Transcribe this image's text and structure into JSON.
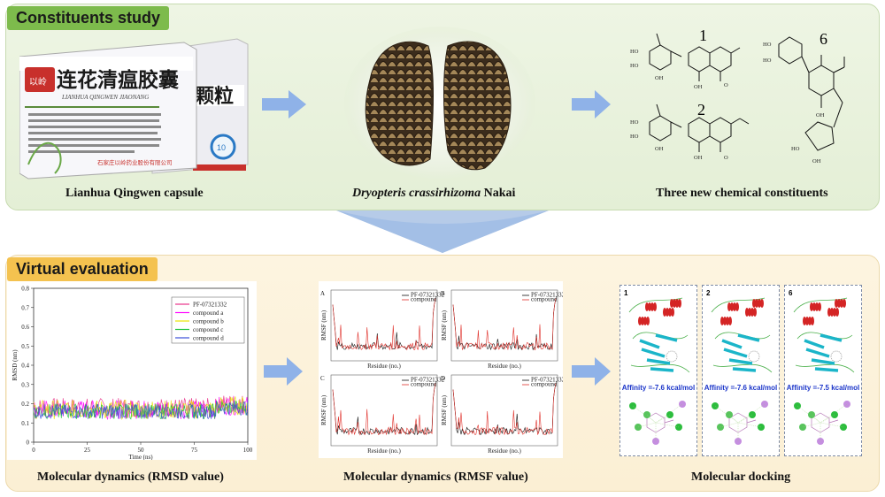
{
  "sections": {
    "constituents": "Constituents study",
    "virtual": "Virtual evaluation"
  },
  "captions": {
    "capsule": "Lianhua Qingwen capsule",
    "herb_species": "Dryopteris crassirhizoma",
    "herb_author": " Nakai",
    "constituents": "Three new chemical constituents",
    "rmsd": "Molecular dynamics (RMSD value)",
    "rmsf": "Molecular dynamics (RMSF value)",
    "docking": "Molecular docking"
  },
  "capsule_box": {
    "title_cn": "连花清瘟胶囊",
    "pinyin": "LIANHUA QINGWEN JIAONANG",
    "second_box_cn": "颗粒",
    "manufacturer_cn": "石家庄以岭药业股份有限公司",
    "logo_text": "以岭",
    "badge": "10"
  },
  "compounds": {
    "c1": "1",
    "c2": "2",
    "c6": "6",
    "atoms": {
      "HO": "HO",
      "OH": "OH",
      "O": "O",
      "OH2": "OH"
    }
  },
  "chart_data": [
    {
      "type": "line",
      "title": "",
      "xlabel": "Time (ns)",
      "ylabel": "RMSD (nm)",
      "xlim": [
        0,
        100
      ],
      "ylim": [
        0,
        0.8
      ],
      "xticks": [
        "0",
        "25",
        "50",
        "75",
        "100"
      ],
      "yticks": [
        "0",
        "0.1",
        "0.2",
        "0.3",
        "0.4",
        "0.5",
        "0.6",
        "0.7",
        "0.8"
      ],
      "legend_position": "top-right",
      "series": [
        {
          "name": "PF-07321332",
          "color": "#e8338a",
          "mean": 0.18,
          "band": 0.05
        },
        {
          "name": "compound a",
          "color": "#ff00ff",
          "mean": 0.17,
          "band": 0.05
        },
        {
          "name": "compound b",
          "color": "#e8e400",
          "mean": 0.17,
          "band": 0.05
        },
        {
          "name": "compound c",
          "color": "#19c23a",
          "mean": 0.16,
          "band": 0.04
        },
        {
          "name": "compound d",
          "color": "#3a4fd8",
          "mean": 0.16,
          "band": 0.04
        }
      ]
    },
    {
      "type": "line",
      "title": "",
      "panels": [
        "A",
        "B",
        "C",
        "D"
      ],
      "xlabel": "Residue (no.)",
      "ylabel": "RMSF (nm)",
      "series": [
        {
          "name": "PF-07321332",
          "color": "#111111"
        },
        {
          "name": "compound",
          "color": "#e0302a"
        }
      ]
    }
  ],
  "docking": {
    "panels": [
      {
        "num": "1",
        "affinity": "Affinity =-7.6 kcal/mol"
      },
      {
        "num": "2",
        "affinity": "Affinity =-7.6 kcal/mol"
      },
      {
        "num": "6",
        "affinity": "Affinity =-7.5 kcal/mol"
      }
    ]
  },
  "colors": {
    "top_panel": "#e4efd6",
    "bottom_panel": "#fbefd4",
    "top_tag": "#7dbb4c",
    "bottom_tag": "#f4c24f",
    "arrow": "#8fb2e8",
    "helix": "#d42525",
    "sheet": "#1bb5c9"
  }
}
